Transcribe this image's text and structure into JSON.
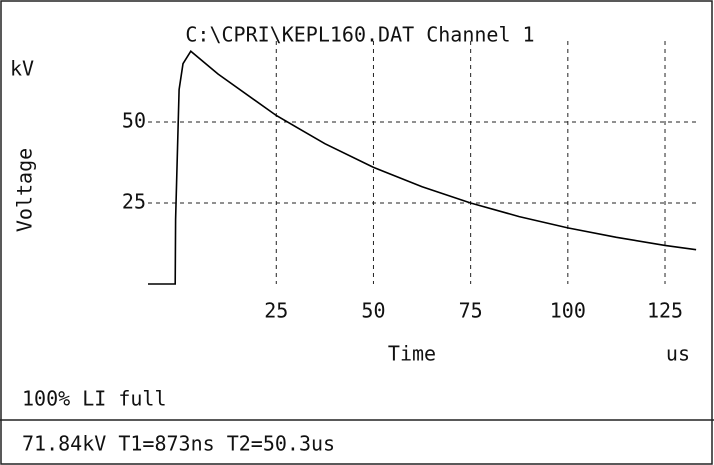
{
  "chart_data": {
    "type": "line",
    "title": "C:\\CPRI\\KEPL160.DAT   Channel  1",
    "y_unit": "kV",
    "ylabel": "Voltage",
    "xlabel": "Time",
    "x_unit": "us",
    "annotations": [
      "100% LI full",
      "71.84kV T1=873ns T2=50.3us"
    ],
    "x": [
      -8,
      -1,
      -0.9,
      0,
      1,
      3,
      10,
      25,
      37.5,
      50,
      62.5,
      75,
      87.5,
      100,
      112.5,
      125,
      133
    ],
    "series": [
      {
        "color": "#000000",
        "values": [
          0,
          0,
          20,
          60,
          68,
          71.84,
          64.8,
          52,
          43.3,
          36,
          30,
          25,
          20.8,
          17.3,
          14.4,
          11.9,
          10.6
        ]
      }
    ],
    "xlim": [
      -8,
      134
    ],
    "ylim": [
      0,
      75
    ],
    "xticks": [
      25,
      50,
      75,
      100,
      125
    ],
    "yticks": [
      25,
      50
    ],
    "grid": true
  }
}
